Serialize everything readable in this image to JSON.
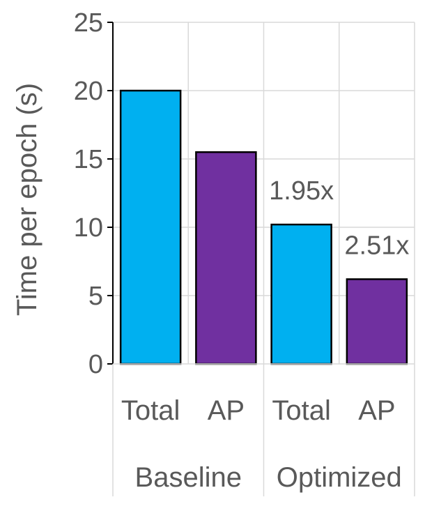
{
  "chart_data": {
    "type": "bar",
    "title": "",
    "ylabel": "Time per epoch (s)",
    "xlabel": "",
    "ylim": [
      0,
      25
    ],
    "yticks": [
      0,
      5,
      10,
      15,
      20,
      25
    ],
    "grid": true,
    "groups": [
      {
        "label": "Baseline",
        "bars": [
          {
            "category": "Total",
            "value": 20.0,
            "color": "#00b0f0"
          },
          {
            "category": "AP",
            "value": 15.5,
            "color": "#7030a0"
          }
        ]
      },
      {
        "label": "Optimized",
        "bars": [
          {
            "category": "Total",
            "value": 10.2,
            "color": "#00b0f0",
            "annotation": "1.95x"
          },
          {
            "category": "AP",
            "value": 6.2,
            "color": "#7030a0",
            "annotation": "2.51x"
          }
        ]
      }
    ]
  }
}
